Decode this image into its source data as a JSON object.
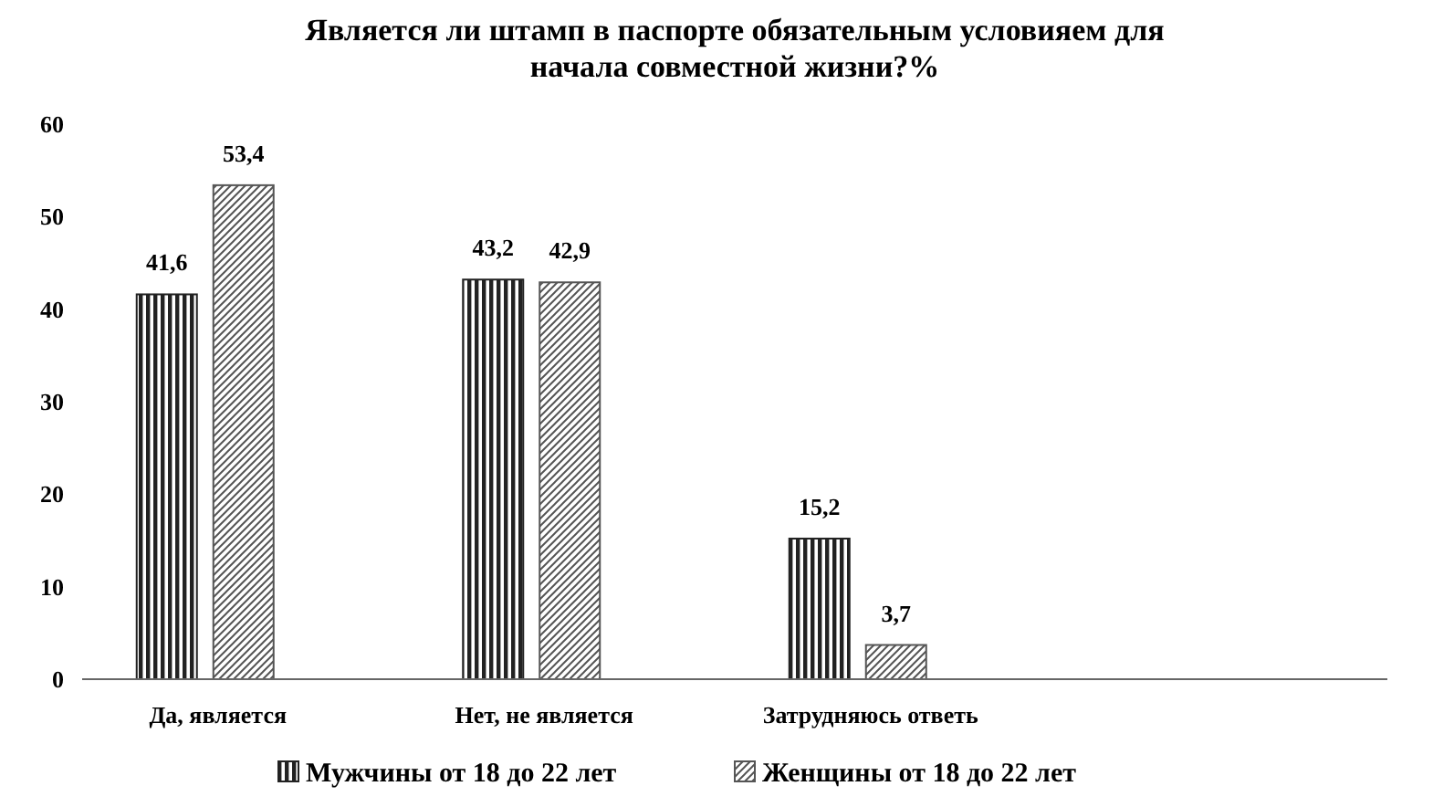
{
  "chart_data": {
    "type": "bar",
    "title": "Является ли штамп в паспорте обязательным условияем для начала совместной жизни?%",
    "categories": [
      "Да, является",
      "Нет, не является",
      "Затрудняюсь ответь",
      null
    ],
    "series": [
      {
        "name": "Мужчины от 18 до 22 лет",
        "color": "#222222",
        "values": [
          41.6,
          43.2,
          15.2,
          null
        ],
        "value_labels": [
          "41,6",
          "43,2",
          "15,2",
          null
        ]
      },
      {
        "name": "Женщины от 18 до 22 лет",
        "color": "#555555",
        "values": [
          53.4,
          42.9,
          3.7,
          null
        ],
        "value_labels": [
          "53,4",
          "42,9",
          "3,7",
          null
        ]
      }
    ],
    "ylim": [
      0,
      60
    ],
    "yticks": [
      0,
      10,
      20,
      30,
      40,
      50,
      60
    ],
    "grid": false,
    "legend": "bottom"
  }
}
